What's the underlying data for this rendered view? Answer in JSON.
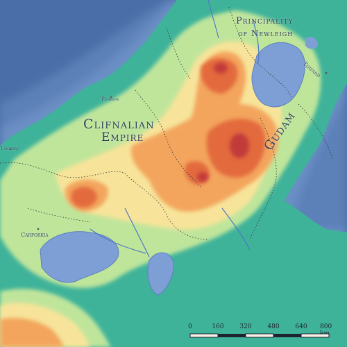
{
  "colors": {
    "deep_sea": "#4a6fa8",
    "shallow_sea": "#6f93c9",
    "lake": "#7e9fd6",
    "lowland": "#3fb39a",
    "plain": "#bfe59b",
    "upland": "#f7e49a",
    "hill": "#f3a55d",
    "mountain": "#e36a3e",
    "peak": "#c23b3b",
    "border": "#3a3a3a",
    "river": "#4f78c4"
  },
  "regions": {
    "principality": {
      "line1": "Principality",
      "line2": "of Newleigh"
    },
    "empire": {
      "line1": "Clifnalian",
      "line2": "Empire"
    },
    "gudam": "Gudam"
  },
  "towns": {
    "toifard": "Toifard",
    "penrow": "Penrow",
    "carporkia": "Carporkia",
    "west_edge": "Tansdry"
  },
  "scale_bar": {
    "ticks": [
      "0",
      "160",
      "320",
      "480",
      "640",
      "800 km"
    ]
  }
}
